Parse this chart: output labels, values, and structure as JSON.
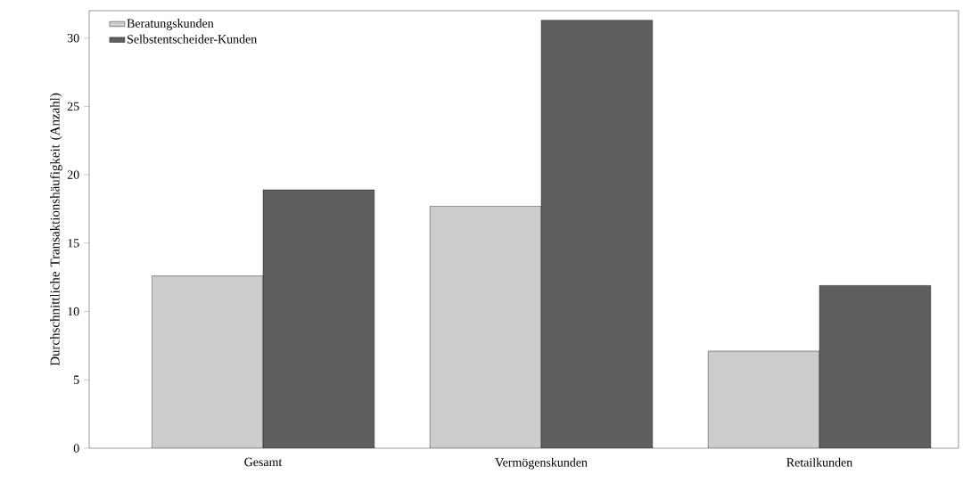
{
  "chart_data": {
    "type": "bar",
    "ylabel": "Durchschnittliche Transaktionshäufigkeit (Anzahl)",
    "categories": [
      "Gesamt",
      "Vermögenskunden",
      "Retailkunden"
    ],
    "series": [
      {
        "name": "Beratungskunden",
        "color": "#cccccc",
        "values": [
          12.6,
          17.7,
          7.1
        ]
      },
      {
        "name": "Selbstentscheider-Kunden",
        "color": "#5f5f5f",
        "values": [
          18.9,
          31.3,
          11.9
        ]
      }
    ],
    "ylim": [
      0,
      32
    ],
    "yticks": [
      0,
      5,
      10,
      15,
      20,
      25,
      30
    ],
    "grid": false,
    "legend": "top left"
  }
}
